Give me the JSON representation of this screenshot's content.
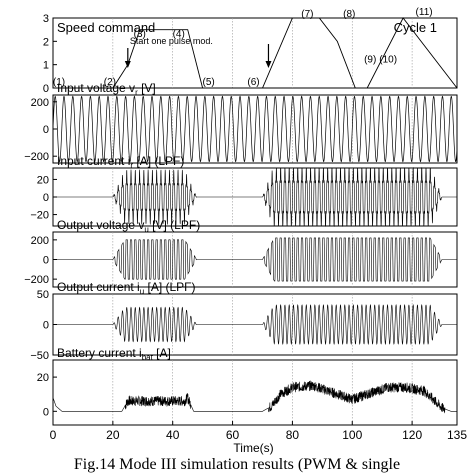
{
  "caption": "Fig.14 Mode III simulation results (PWM & single",
  "chart_data": {
    "type": "line",
    "shared_xaxis": {
      "label": "Time(s)",
      "lim": [
        0,
        135
      ],
      "ticks": [
        0,
        20,
        40,
        60,
        80,
        100,
        120,
        135
      ]
    },
    "panels": [
      {
        "id": "speed",
        "title": "Speed command",
        "cycle_label": "Cycle 1",
        "ylim": [
          0,
          3
        ],
        "yticks": [
          "0",
          "1",
          "2",
          "3"
        ],
        "points": [
          [
            0,
            0
          ],
          [
            20,
            0
          ],
          [
            25,
            1
          ],
          [
            29,
            2.5
          ],
          [
            45,
            2.5
          ],
          [
            50,
            0
          ],
          [
            70,
            0
          ],
          [
            80,
            3
          ],
          [
            89,
            3
          ],
          [
            95,
            2
          ],
          [
            101,
            0
          ],
          [
            105,
            0
          ],
          [
            117,
            3
          ],
          [
            135,
            0
          ]
        ],
        "annotation": "Start one pulse mod.",
        "arrow_times": [
          25,
          72
        ],
        "state_labels": [
          "(1)",
          "(2)",
          "(3)",
          "(4)",
          "(5)",
          "(6)",
          "(7)",
          "(8)",
          "(9)",
          "(10)",
          "(11)"
        ],
        "state_times": [
          2,
          19,
          29,
          42,
          52,
          67,
          85,
          99,
          106,
          112,
          124
        ],
        "state_values": [
          0.05,
          0.05,
          2.1,
          2.1,
          0.05,
          0.05,
          2.95,
          2.95,
          1.0,
          1.0,
          3.05
        ]
      },
      {
        "id": "vr",
        "title": "Input voltage",
        "symbol": "v",
        "subscript": "r",
        "unit": " [V]",
        "ylim": [
          -250,
          250
        ],
        "yticks": [
          "200",
          "0",
          "−200"
        ],
        "amplitude": 240,
        "cycles_per_second": 0.34
      },
      {
        "id": "ir",
        "title": "Input current",
        "symbol": "i",
        "subscript": "r",
        "unit": " [A] (LPF)",
        "ylim": [
          -33,
          33
        ],
        "yticks": [
          "20",
          "0",
          "−20"
        ],
        "bursts": [
          {
            "t_start": 20,
            "t_end": 48,
            "amplitude": 25
          },
          {
            "t_start": 70,
            "t_end": 130,
            "amplitude": 30
          }
        ]
      },
      {
        "id": "vu",
        "title": "Output voltage",
        "symbol": "v",
        "subscript": "u",
        "unit": " [V] (LPF)",
        "ylim": [
          -280,
          280
        ],
        "yticks": [
          "200",
          "0",
          "−200"
        ],
        "bursts": [
          {
            "t_start": 20,
            "t_end": 48,
            "amplitude": 200
          },
          {
            "t_start": 70,
            "t_end": 130,
            "amplitude": 220
          }
        ]
      },
      {
        "id": "iu",
        "title": "Output current",
        "symbol": "i",
        "subscript": "u",
        "unit": " [A] (LPF)",
        "ylim": [
          -50,
          50
        ],
        "yticks": [
          "50",
          "0",
          "−50"
        ],
        "bursts": [
          {
            "t_start": 20,
            "t_end": 48,
            "amplitude": 28
          },
          {
            "t_start": 70,
            "t_end": 130,
            "amplitude": 32
          }
        ]
      },
      {
        "id": "ibat",
        "title": "Battery current",
        "symbol": "i",
        "subscript": "bat",
        "unit": " [A]",
        "ylim": [
          -8,
          30
        ],
        "yticks": [
          "20",
          "0"
        ],
        "envelope_points": [
          [
            0,
            8
          ],
          [
            1,
            3
          ],
          [
            3,
            0
          ],
          [
            23,
            0
          ],
          [
            25,
            6
          ],
          [
            27,
            6
          ],
          [
            44,
            6
          ],
          [
            45,
            8
          ],
          [
            47,
            0
          ],
          [
            70,
            0
          ],
          [
            73,
            3
          ],
          [
            76,
            10
          ],
          [
            80,
            14
          ],
          [
            87,
            15
          ],
          [
            95,
            10
          ],
          [
            100,
            7
          ],
          [
            105,
            10
          ],
          [
            112,
            14
          ],
          [
            118,
            14
          ],
          [
            124,
            12
          ],
          [
            130,
            2
          ],
          [
            133,
            0
          ],
          [
            135,
            0
          ]
        ]
      }
    ]
  }
}
